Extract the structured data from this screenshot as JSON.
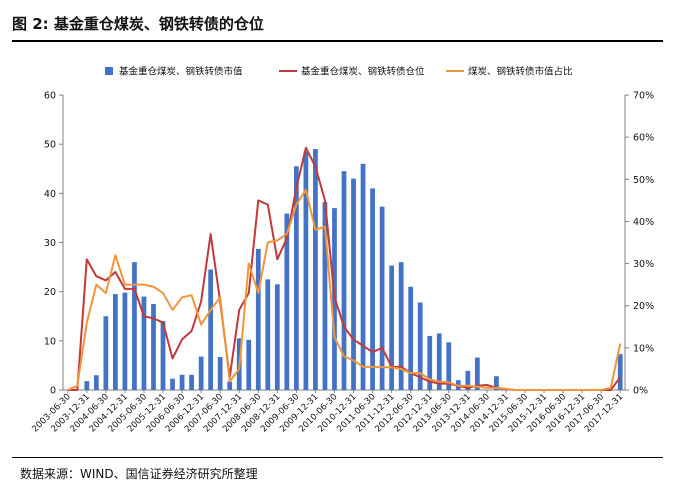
{
  "figure": {
    "title": "图 2:  基金重仓煤炭、钢铁转债的仓位",
    "source": "数据来源：WIND、国信证券经济研究所整理"
  },
  "chart_data": {
    "type": "bar",
    "categories": [
      "2003-06-30",
      "2003-09-30",
      "2003-12-31",
      "2004-03-31",
      "2004-06-30",
      "2004-09-30",
      "2004-12-31",
      "2005-03-31",
      "2005-06-30",
      "2005-09-30",
      "2005-12-31",
      "2006-03-31",
      "2006-06-30",
      "2006-09-30",
      "2006-12-31",
      "2007-03-31",
      "2007-06-30",
      "2007-09-30",
      "2007-12-31",
      "2008-03-31",
      "2008-06-30",
      "2008-09-30",
      "2008-12-31",
      "2009-03-31",
      "2009-06-30",
      "2009-09-30",
      "2009-12-31",
      "2010-03-31",
      "2010-06-30",
      "2010-09-30",
      "2010-12-31",
      "2011-03-31",
      "2011-06-30",
      "2011-09-30",
      "2011-12-31",
      "2012-03-31",
      "2012-06-30",
      "2012-09-30",
      "2012-12-31",
      "2013-03-31",
      "2013-06-30",
      "2013-09-30",
      "2013-12-31",
      "2014-03-31",
      "2014-06-30",
      "2014-09-30",
      "2014-12-31",
      "2015-03-31",
      "2015-06-30",
      "2015-09-30",
      "2015-12-31",
      "2016-03-31",
      "2016-06-30",
      "2016-09-30",
      "2016-12-31",
      "2017-03-31",
      "2017-06-30",
      "2017-09-30",
      "2017-12-31"
    ],
    "tick_labels": [
      "2003-06-30",
      "2003-12-31",
      "2004-06-30",
      "2004-12-31",
      "2005-06-30",
      "2005-12-31",
      "2006-06-30",
      "2006-12-31",
      "2007-06-30",
      "2007-12-31",
      "2008-06-30",
      "2008-12-31",
      "2009-06-30",
      "2009-12-31",
      "2010-06-30",
      "2010-12-31",
      "2011-06-30",
      "2011-12-31",
      "2012-06-30",
      "2012-12-31",
      "2013-06-30",
      "2013-12-31",
      "2014-06-30",
      "2014-12-31",
      "2015-06-30",
      "2015-12-31",
      "2016-06-30",
      "2016-12-31",
      "2017-06-30",
      "2017-12-31"
    ],
    "series": [
      {
        "name": "基金重仓煤炭、钢铁转债市值",
        "type": "bar",
        "axis": "left",
        "color": "#4472C4",
        "values": [
          0,
          0,
          1.8,
          3,
          15,
          19.5,
          19.8,
          26,
          19,
          17.5,
          14,
          2.3,
          3.1,
          3.1,
          6.8,
          24.5,
          6.7,
          1.7,
          10.5,
          10.2,
          28.7,
          22.5,
          21.5,
          35.9,
          45.5,
          48.5,
          49,
          38.2,
          37,
          44.5,
          43,
          46,
          41,
          37.3,
          25.3,
          26,
          21,
          17.8,
          11,
          11.5,
          9.7,
          2,
          3.9,
          6.6,
          0,
          2.8,
          0.3,
          0,
          0,
          0,
          0,
          0,
          0,
          0,
          0,
          0,
          0,
          0,
          7.3
        ]
      },
      {
        "name": "基金重仓煤炭、钢铁转债仓位",
        "type": "line",
        "axis": "right",
        "color": "#C0393B",
        "values": [
          0,
          0,
          31,
          27,
          26,
          28,
          24,
          24,
          17.5,
          17,
          16,
          7.5,
          12,
          14,
          21,
          37,
          21,
          3,
          19,
          23,
          45,
          44,
          31,
          36,
          48,
          57.5,
          53,
          45,
          22,
          15,
          12,
          10.5,
          9,
          10,
          5.5,
          5.5,
          4,
          3,
          2,
          1.5,
          1.5,
          1,
          0.5,
          1,
          1.2,
          0.5,
          0.2,
          0,
          0,
          0,
          0,
          0,
          0,
          0,
          0,
          0,
          0,
          0,
          3
        ]
      },
      {
        "name": "煤炭、钢铁转债市值占比",
        "type": "line",
        "axis": "right",
        "color": "#F0953A",
        "values": [
          0,
          1,
          16,
          25,
          23,
          32,
          25,
          25,
          25,
          24.5,
          23,
          19,
          22,
          22.5,
          15.5,
          19,
          22,
          2,
          5,
          30,
          23,
          35,
          35.5,
          37,
          44,
          47.5,
          38,
          38.8,
          12.5,
          8,
          7,
          5.5,
          5.5,
          5.4,
          5.4,
          5,
          4,
          4,
          2.5,
          2,
          1.8,
          1,
          1,
          0.8,
          0.5,
          0.5,
          0.3,
          0,
          0,
          0,
          0,
          0,
          0,
          0,
          0,
          0,
          0,
          0.5,
          11
        ]
      }
    ],
    "left_axis": {
      "min": 0,
      "max": 60,
      "ticks": [
        0,
        10,
        20,
        30,
        40,
        50,
        60
      ]
    },
    "right_axis": {
      "min": 0,
      "max": 70,
      "ticks": [
        "0%",
        "10%",
        "20%",
        "30%",
        "40%",
        "50%",
        "60%",
        "70%"
      ]
    },
    "legend_position": "top",
    "grid": false
  }
}
